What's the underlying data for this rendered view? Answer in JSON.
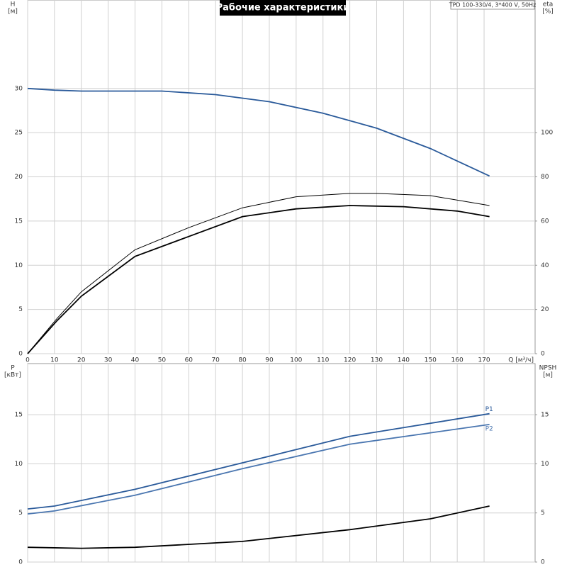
{
  "chart_data": [
    {
      "type": "line",
      "title": "Рабочие характеристики",
      "subtitle": "TPD 100-330/4, 3*400 V, 50Hz",
      "ylabel": "H",
      "yunit": "[м]",
      "y2label": "eta",
      "y2unit": "[%]",
      "xlabel": "Q [м³/ч]",
      "xlim": [
        0,
        189
      ],
      "xticks": [
        0,
        10,
        20,
        30,
        40,
        50,
        60,
        70,
        80,
        90,
        100,
        110,
        120,
        130,
        140,
        150,
        160,
        170
      ],
      "ylim": [
        0,
        40
      ],
      "yticks": [
        0,
        5,
        10,
        15,
        20,
        25,
        30
      ],
      "y2lim": [
        0,
        160
      ],
      "y2ticks": [
        0,
        20,
        40,
        60,
        80,
        100
      ],
      "grid": true,
      "xtick_labels": true,
      "series": [
        {
          "color": "#2a5a9a",
          "x": [
            0,
            10,
            20,
            50,
            70,
            90,
            110,
            130,
            150,
            172
          ],
          "values": [
            30,
            29.8,
            29.7,
            29.7,
            29.3,
            28.5,
            27.2,
            25.5,
            23.2,
            20.1
          ]
        },
        {
          "color": "#000000",
          "axis": "y2",
          "x": [
            0,
            11,
            20,
            40,
            60,
            80,
            100,
            120,
            140,
            160,
            172
          ],
          "values": [
            0,
            15,
            26,
            44,
            53,
            62,
            65.5,
            67,
            66.5,
            64.5,
            62
          ]
        },
        {
          "color": "#000000",
          "axis": "y2",
          "x": [
            0,
            11,
            20,
            40,
            60,
            80,
            100,
            120,
            130,
            150,
            172
          ],
          "values": [
            0,
            16,
            28,
            47,
            57,
            66,
            71,
            72.5,
            72.5,
            71.5,
            67
          ]
        }
      ]
    },
    {
      "type": "line",
      "ylabel": "P",
      "yunit": "[кВт]",
      "y2label": "NPSH",
      "y2unit": "[м]",
      "xlim": [
        0,
        189
      ],
      "xticks": [
        0,
        10,
        20,
        30,
        40,
        50,
        60,
        70,
        80,
        90,
        100,
        110,
        120,
        130,
        140,
        150,
        160,
        170
      ],
      "ylim": [
        0,
        20.2
      ],
      "yticks": [
        0,
        5,
        10,
        15
      ],
      "y2lim": [
        0,
        20.2
      ],
      "y2ticks": [
        0,
        5,
        10,
        15
      ],
      "grid": true,
      "xtick_labels": false,
      "series": [
        {
          "name": "P1",
          "color": "#2a5a9a",
          "x": [
            0,
            10,
            40,
            80,
            120,
            172
          ],
          "values": [
            5.4,
            5.7,
            7.4,
            10.1,
            12.8,
            15.1
          ]
        },
        {
          "name": "P2",
          "color": "#4a76b0",
          "x": [
            0,
            10,
            40,
            80,
            120,
            172
          ],
          "values": [
            4.9,
            5.2,
            6.8,
            9.5,
            12.0,
            14.0
          ]
        },
        {
          "color": "#000000",
          "axis": "y2",
          "x": [
            0,
            20,
            40,
            80,
            120,
            150,
            172
          ],
          "values": [
            1.5,
            1.4,
            1.5,
            2.1,
            3.3,
            4.4,
            5.7
          ]
        }
      ]
    }
  ]
}
